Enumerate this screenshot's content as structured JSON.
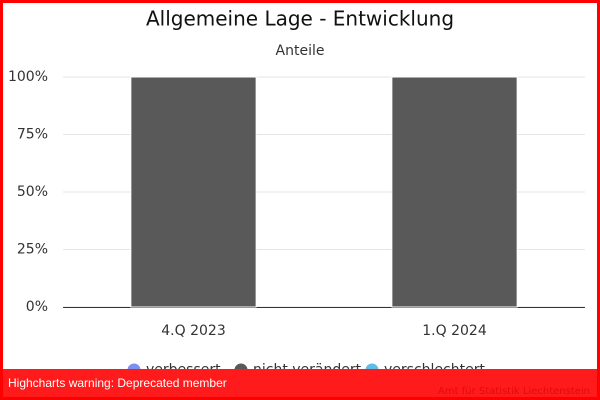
{
  "chart_data": {
    "type": "stacked_percent_bar",
    "title": "Allgemeine Lage - Entwicklung",
    "subtitle": "Anteile",
    "categories": [
      "4.Q 2023",
      "1.Q 2024"
    ],
    "series": [
      {
        "name": "verbessert",
        "color": "#7c8ff0",
        "values": [
          0,
          0
        ]
      },
      {
        "name": "nicht verändert",
        "color": "#595959",
        "values": [
          100,
          100
        ]
      },
      {
        "name": "verschlechtert",
        "color": "#5cbde8",
        "values": [
          0,
          0
        ]
      }
    ],
    "ylim": [
      0,
      100
    ],
    "yticks": [
      {
        "value": 0,
        "label": "0%"
      },
      {
        "value": 25,
        "label": "25%"
      },
      {
        "value": 50,
        "label": "50%"
      },
      {
        "value": 75,
        "label": "75%"
      },
      {
        "value": 100,
        "label": "100%"
      }
    ],
    "grid": true,
    "legend": "bottom",
    "credits": "Amt für Statistik Liechtenstein",
    "warning": "Highcharts warning: Deprecated member"
  }
}
